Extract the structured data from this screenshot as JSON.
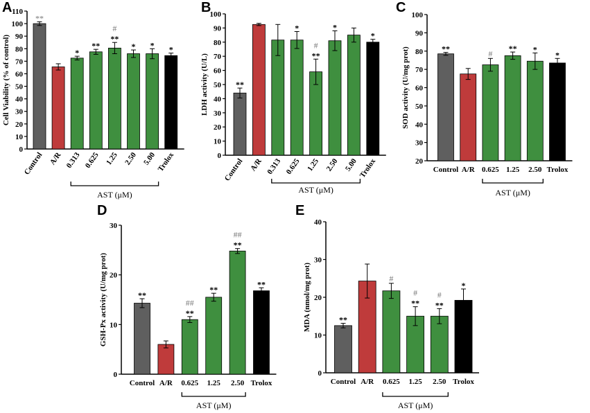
{
  "colors": {
    "Control": "#5f5f5f",
    "A/R": "#bf3b3b",
    "AST": "#3f8f3f",
    "Trolox": "#000000",
    "axis": "#000000",
    "hash": "#7a7a7a"
  },
  "chart_data": [
    {
      "panel": "A",
      "type": "bar",
      "ylabel": "Cell Viability (% of control)",
      "ylim": [
        0,
        110
      ],
      "yticks": [
        0,
        10,
        20,
        30,
        40,
        50,
        60,
        70,
        80,
        90,
        100,
        110
      ],
      "categories": [
        "Control",
        "A/R",
        "0.313",
        "0.625",
        "1.25",
        "2.50",
        "5.00",
        "Trolox"
      ],
      "values": [
        100,
        65.5,
        72.5,
        77.5,
        80.5,
        76,
        76,
        74.5
      ],
      "errors": [
        1.5,
        2.5,
        1.5,
        2,
        4.5,
        3,
        4,
        2
      ],
      "significance": [
        "**",
        "",
        "*",
        "**",
        "**",
        "*",
        "*",
        "*"
      ],
      "hash": [
        "",
        "",
        "",
        "",
        "#",
        "",
        "",
        ""
      ],
      "group_label": "AST (μM)",
      "group_start": 2,
      "group_end": 6
    },
    {
      "panel": "B",
      "type": "bar",
      "ylabel": "LDH activity (U/L)",
      "ylim": [
        0,
        100
      ],
      "yticks": [
        0,
        10,
        20,
        30,
        40,
        50,
        60,
        70,
        80,
        90,
        100
      ],
      "categories": [
        "Control",
        "A/R",
        "0.313",
        "0.625",
        "1.25",
        "2.50",
        "5.00",
        "Trolox"
      ],
      "values": [
        44,
        92.5,
        81.5,
        81.5,
        59,
        81,
        85,
        80
      ],
      "errors": [
        3.5,
        0.8,
        11,
        6,
        9,
        7,
        5,
        2
      ],
      "significance": [
        "**",
        "",
        "",
        "*",
        "**",
        "*",
        "",
        "*"
      ],
      "hash": [
        "",
        "",
        "",
        "",
        "#",
        "",
        "",
        ""
      ],
      "group_label": "AST (μM)",
      "group_start": 2,
      "group_end": 6
    },
    {
      "panel": "C",
      "type": "bar",
      "ylabel": "SOD activity (U/mg prot)",
      "ylim": [
        20,
        100
      ],
      "yticks": [
        20,
        30,
        40,
        50,
        60,
        70,
        80,
        90,
        100
      ],
      "categories": [
        "Control",
        "A/R",
        "0.625",
        "1.25",
        "2.50",
        "Trolox"
      ],
      "values": [
        78.5,
        67.5,
        72.5,
        77.5,
        74.5,
        73.5
      ],
      "errors": [
        0.8,
        3,
        3.5,
        2,
        4.5,
        2.5
      ],
      "significance": [
        "**",
        "",
        "",
        "**",
        "*",
        "*"
      ],
      "hash": [
        "",
        "",
        "#",
        "",
        "",
        ""
      ],
      "group_label": "AST (μM)",
      "group_start": 2,
      "group_end": 4
    },
    {
      "panel": "D",
      "type": "bar",
      "ylabel": "GSH-Px activity (U/mg prot)",
      "ylim": [
        0,
        30
      ],
      "yticks": [
        0,
        10,
        20,
        30
      ],
      "categories": [
        "Control",
        "A/R",
        "0.625",
        "1.25",
        "2.50",
        "Trolox"
      ],
      "values": [
        14.3,
        6,
        11,
        15.5,
        24.8,
        16.8
      ],
      "errors": [
        0.9,
        0.7,
        0.6,
        0.8,
        0.5,
        0.6
      ],
      "significance": [
        "**",
        "",
        "**",
        "**",
        "**",
        "**"
      ],
      "hash": [
        "",
        "",
        "##",
        "",
        "##",
        ""
      ],
      "group_label": "AST (μM)",
      "group_start": 2,
      "group_end": 4
    },
    {
      "panel": "E",
      "type": "bar",
      "ylabel": "MDA  (nmol/mg prot)",
      "ylim": [
        0,
        40
      ],
      "yticks": [
        0,
        10,
        20,
        30,
        40
      ],
      "categories": [
        "Control",
        "A/R",
        "0.625",
        "1.25",
        "2.50",
        "Trolox"
      ],
      "values": [
        12.5,
        24.3,
        21.7,
        15,
        15,
        19.2
      ],
      "errors": [
        0.6,
        4.5,
        2,
        2.5,
        2,
        3
      ],
      "significance": [
        "**",
        "",
        "",
        "**",
        "**",
        "*"
      ],
      "hash": [
        "",
        "",
        "#",
        "#",
        "#",
        ""
      ],
      "group_label": "AST (μM)",
      "group_start": 2,
      "group_end": 4
    }
  ]
}
